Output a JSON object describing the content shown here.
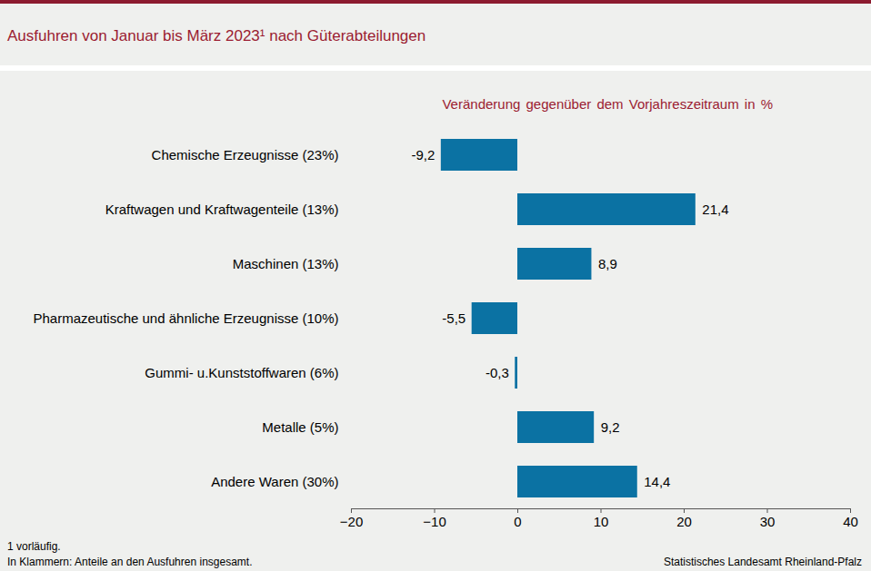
{
  "chart_data": {
    "type": "bar",
    "orientation": "horizontal",
    "title": "Ausfuhren von Januar bis März 2023¹ nach Güterabteilungen",
    "subtitle": "Veränderung gegenüber dem Vorjahreszeitraum in %",
    "categories": [
      "Chemische Erzeugnisse (23%)",
      "Kraftwagen und Kraftwagenteile (13%)",
      "Maschinen (13%)",
      "Pharmazeutische und ähnliche Erzeugnisse (10%)",
      "Gummi- u.Kunststoffwaren (6%)",
      "Metalle (5%)",
      "Andere Waren (30%)"
    ],
    "values": [
      -9.2,
      21.4,
      8.9,
      -5.5,
      -0.3,
      9.2,
      14.4
    ],
    "value_labels": [
      "-9,2",
      "21,4",
      "8,9",
      "-5,5",
      "-0,3",
      "9,2",
      "14,4"
    ],
    "data_labels": true,
    "color": "#0b72a3",
    "xlim": [
      -20,
      40
    ],
    "xticks": [
      -20,
      -10,
      0,
      10,
      20,
      30,
      40
    ],
    "grid": false,
    "notes": [
      "1 vorläufig.",
      "In Klammern: Anteile an den Ausfuhren insgesamt."
    ],
    "source": "Statistisches Landesamt Rheinland-Pfalz"
  }
}
